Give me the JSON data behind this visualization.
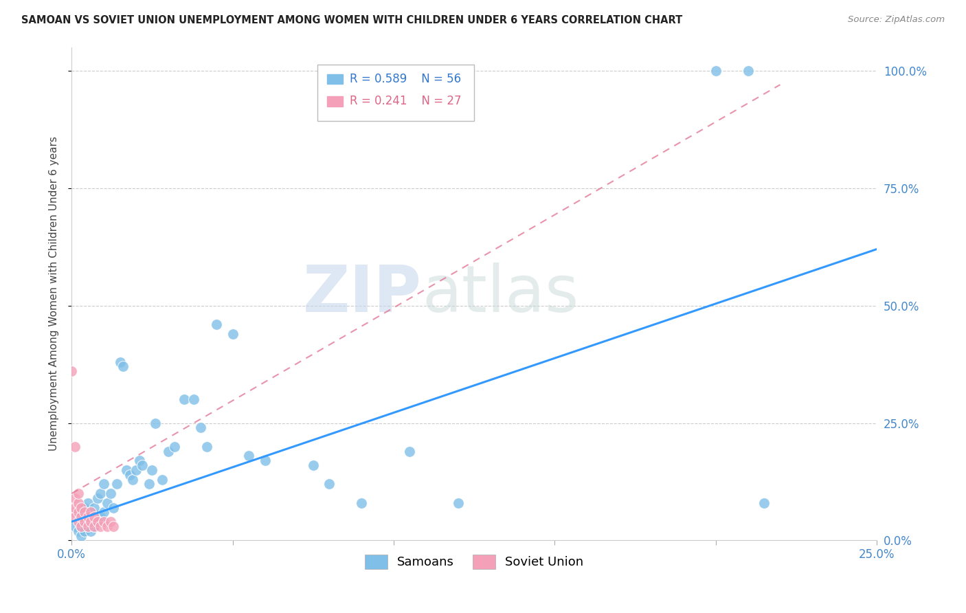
{
  "title": "SAMOAN VS SOVIET UNION UNEMPLOYMENT AMONG WOMEN WITH CHILDREN UNDER 6 YEARS CORRELATION CHART",
  "source": "Source: ZipAtlas.com",
  "ylabel": "Unemployment Among Women with Children Under 6 years",
  "xlim": [
    0.0,
    0.25
  ],
  "ylim": [
    0.0,
    1.05
  ],
  "yticks": [
    0.0,
    0.25,
    0.5,
    0.75,
    1.0
  ],
  "xticks": [
    0.0,
    0.05,
    0.1,
    0.15,
    0.2,
    0.25
  ],
  "ytick_labels": [
    "0.0%",
    "25.0%",
    "50.0%",
    "75.0%",
    "100.0%"
  ],
  "xtick_labels": [
    "0.0%",
    "",
    "",
    "",
    "",
    "25.0%"
  ],
  "background_color": "#ffffff",
  "watermark_zip": "ZIP",
  "watermark_atlas": "atlas",
  "samoans_color": "#7fbfe8",
  "soviet_color": "#f4a0b8",
  "trend_blue_color": "#3399ff",
  "trend_pink_color": "#e07090",
  "R_samoans": 0.589,
  "N_samoans": 56,
  "R_soviet": 0.241,
  "N_soviet": 27,
  "samoans_x": [
    0.001,
    0.002,
    0.002,
    0.003,
    0.003,
    0.003,
    0.004,
    0.004,
    0.004,
    0.005,
    0.005,
    0.005,
    0.006,
    0.006,
    0.007,
    0.007,
    0.008,
    0.008,
    0.009,
    0.009,
    0.01,
    0.01,
    0.011,
    0.012,
    0.013,
    0.014,
    0.015,
    0.016,
    0.017,
    0.018,
    0.019,
    0.02,
    0.021,
    0.022,
    0.024,
    0.025,
    0.026,
    0.028,
    0.03,
    0.032,
    0.035,
    0.038,
    0.04,
    0.042,
    0.045,
    0.05,
    0.055,
    0.06,
    0.075,
    0.08,
    0.09,
    0.105,
    0.12,
    0.2,
    0.21,
    0.215
  ],
  "samoans_y": [
    0.03,
    0.02,
    0.05,
    0.01,
    0.03,
    0.06,
    0.02,
    0.04,
    0.07,
    0.03,
    0.05,
    0.08,
    0.02,
    0.06,
    0.03,
    0.07,
    0.04,
    0.09,
    0.05,
    0.1,
    0.06,
    0.12,
    0.08,
    0.1,
    0.07,
    0.12,
    0.38,
    0.37,
    0.15,
    0.14,
    0.13,
    0.15,
    0.17,
    0.16,
    0.12,
    0.15,
    0.25,
    0.13,
    0.19,
    0.2,
    0.3,
    0.3,
    0.24,
    0.2,
    0.46,
    0.44,
    0.18,
    0.17,
    0.16,
    0.12,
    0.08,
    0.19,
    0.08,
    1.0,
    1.0,
    0.08
  ],
  "soviet_x": [
    0.0,
    0.0,
    0.001,
    0.001,
    0.001,
    0.001,
    0.002,
    0.002,
    0.002,
    0.002,
    0.003,
    0.003,
    0.003,
    0.004,
    0.004,
    0.005,
    0.005,
    0.006,
    0.006,
    0.007,
    0.007,
    0.008,
    0.009,
    0.01,
    0.011,
    0.012,
    0.013
  ],
  "soviet_y": [
    0.36,
    0.06,
    0.2,
    0.05,
    0.07,
    0.09,
    0.04,
    0.06,
    0.08,
    0.1,
    0.03,
    0.05,
    0.07,
    0.04,
    0.06,
    0.03,
    0.05,
    0.04,
    0.06,
    0.03,
    0.05,
    0.04,
    0.03,
    0.04,
    0.03,
    0.04,
    0.03
  ],
  "blue_line_x": [
    0.0,
    0.25
  ],
  "blue_line_y": [
    0.04,
    0.62
  ],
  "pink_line_x": [
    0.0,
    0.22
  ],
  "pink_line_y": [
    0.1,
    0.97
  ]
}
